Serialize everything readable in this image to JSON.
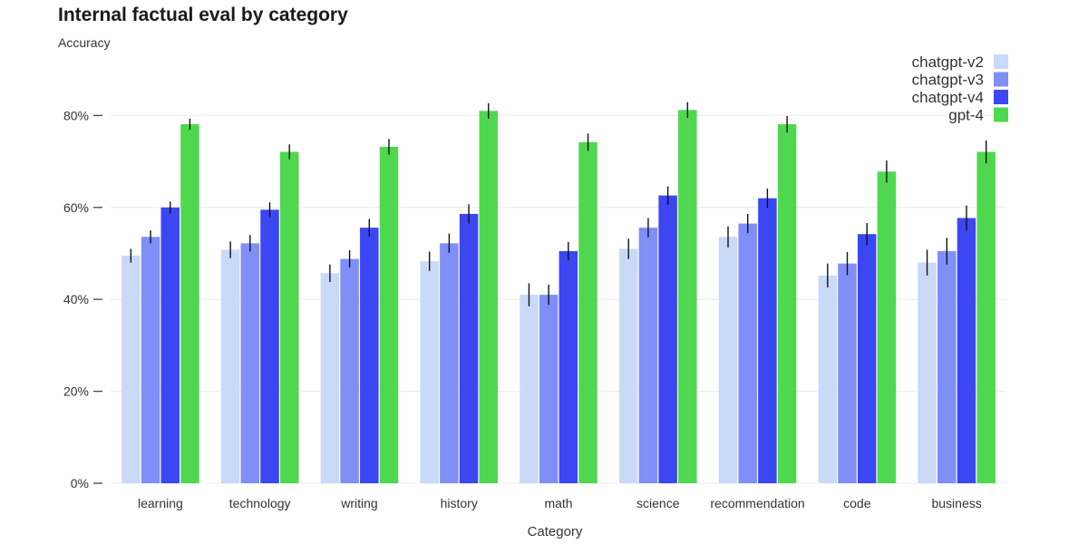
{
  "chart_data": {
    "type": "bar",
    "title": "Internal factual eval by category",
    "ylabel": "Accuracy",
    "xlabel": "Category",
    "ylim": [
      0,
      90
    ],
    "yticks": [
      0,
      20,
      40,
      60,
      80
    ],
    "ytick_labels": [
      "0%",
      "20%",
      "40%",
      "60%",
      "80%"
    ],
    "grid": true,
    "legend_position": "top-right",
    "categories": [
      "learning",
      "technology",
      "writing",
      "history",
      "math",
      "science",
      "recommendation",
      "code",
      "business"
    ],
    "series": [
      {
        "name": "chatgpt-v2",
        "color": "#c9daf8",
        "values": [
          49.5,
          50.8,
          45.7,
          48.3,
          41.0,
          51.0,
          53.6,
          45.2,
          48.0
        ],
        "errors": [
          1.5,
          1.8,
          1.9,
          2.1,
          2.5,
          2.2,
          2.3,
          2.6,
          2.8
        ]
      },
      {
        "name": "chatgpt-v3",
        "color": "#7f8ff7",
        "values": [
          53.6,
          52.2,
          48.8,
          52.2,
          41.0,
          55.6,
          56.5,
          47.8,
          50.5
        ],
        "errors": [
          1.4,
          1.8,
          1.9,
          2.1,
          2.2,
          2.1,
          2.1,
          2.5,
          2.9
        ]
      },
      {
        "name": "chatgpt-v4",
        "color": "#3c46f2",
        "values": [
          60.0,
          59.5,
          55.6,
          58.6,
          50.5,
          62.6,
          62.0,
          54.2,
          57.7
        ],
        "errors": [
          1.3,
          1.6,
          1.9,
          2.1,
          2.0,
          2.0,
          2.1,
          2.4,
          2.7
        ]
      },
      {
        "name": "gpt-4",
        "color": "#4fd84f",
        "values": [
          78.1,
          72.1,
          73.2,
          81.0,
          74.2,
          81.2,
          78.1,
          67.8,
          72.1
        ],
        "errors": [
          1.2,
          1.6,
          1.7,
          1.7,
          1.9,
          1.7,
          1.8,
          2.4,
          2.5
        ]
      }
    ]
  }
}
